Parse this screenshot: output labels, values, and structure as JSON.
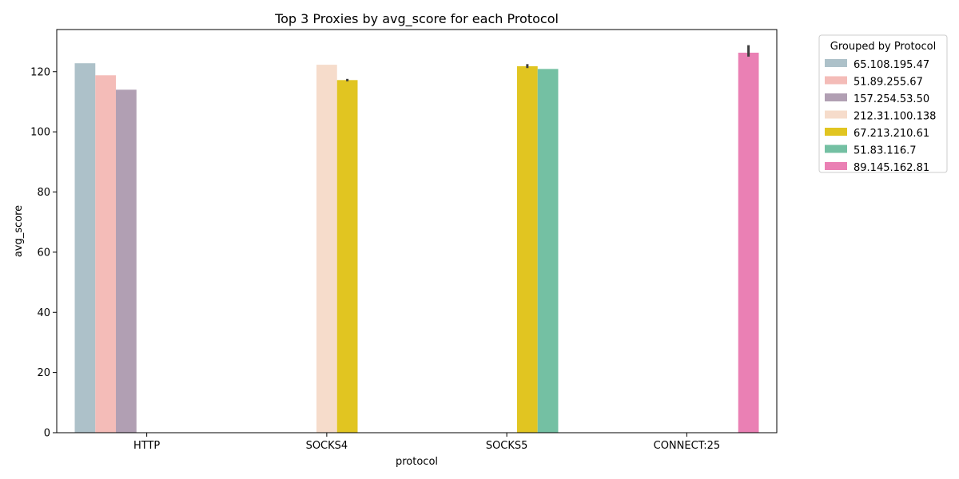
{
  "chart_data": {
    "type": "bar",
    "title": "Top 3 Proxies by avg_score for each Protocol",
    "xlabel": "protocol",
    "ylabel": "avg_score",
    "ylim": [
      0,
      134
    ],
    "yticks": [
      0,
      20,
      40,
      60,
      80,
      100,
      120
    ],
    "categories": [
      "HTTP",
      "SOCKS4",
      "SOCKS5",
      "CONNECT:25"
    ],
    "grid": false,
    "legend": {
      "title": "Grouped by Protocol",
      "placement": "outside-top-right"
    },
    "series": [
      {
        "name": "65.108.195.47",
        "color": "#adc1c9",
        "values": [
          122.8,
          null,
          null,
          null
        ],
        "err_low": [
          null,
          null,
          null,
          null
        ],
        "err_high": [
          null,
          null,
          null,
          null
        ]
      },
      {
        "name": "51.89.255.67",
        "color": "#f4bcb8",
        "values": [
          118.8,
          null,
          null,
          null
        ],
        "err_low": [
          null,
          null,
          null,
          null
        ],
        "err_high": [
          null,
          null,
          null,
          null
        ]
      },
      {
        "name": "157.254.53.50",
        "color": "#b19fb3",
        "values": [
          114.0,
          null,
          null,
          null
        ],
        "err_low": [
          null,
          null,
          null,
          null
        ],
        "err_high": [
          null,
          null,
          null,
          null
        ]
      },
      {
        "name": "212.31.100.138",
        "color": "#f6dccb",
        "values": [
          null,
          122.3,
          null,
          null
        ],
        "err_low": [
          null,
          null,
          null,
          null
        ],
        "err_high": [
          null,
          null,
          null,
          null
        ]
      },
      {
        "name": "67.213.210.61",
        "color": "#e1c521",
        "values": [
          null,
          117.2,
          121.8,
          null
        ],
        "err_low": [
          null,
          116.8,
          121.2,
          null
        ],
        "err_high": [
          null,
          117.6,
          122.5,
          null
        ]
      },
      {
        "name": "51.83.116.7",
        "color": "#74c0a3",
        "values": [
          null,
          null,
          120.9,
          null
        ],
        "err_low": [
          null,
          null,
          null,
          null
        ],
        "err_high": [
          null,
          null,
          null,
          null
        ]
      },
      {
        "name": "89.145.162.81",
        "color": "#ea80b4",
        "values": [
          null,
          null,
          null,
          126.3
        ],
        "err_low": [
          null,
          null,
          null,
          125.0
        ],
        "err_high": [
          null,
          null,
          null,
          128.8
        ]
      }
    ]
  }
}
